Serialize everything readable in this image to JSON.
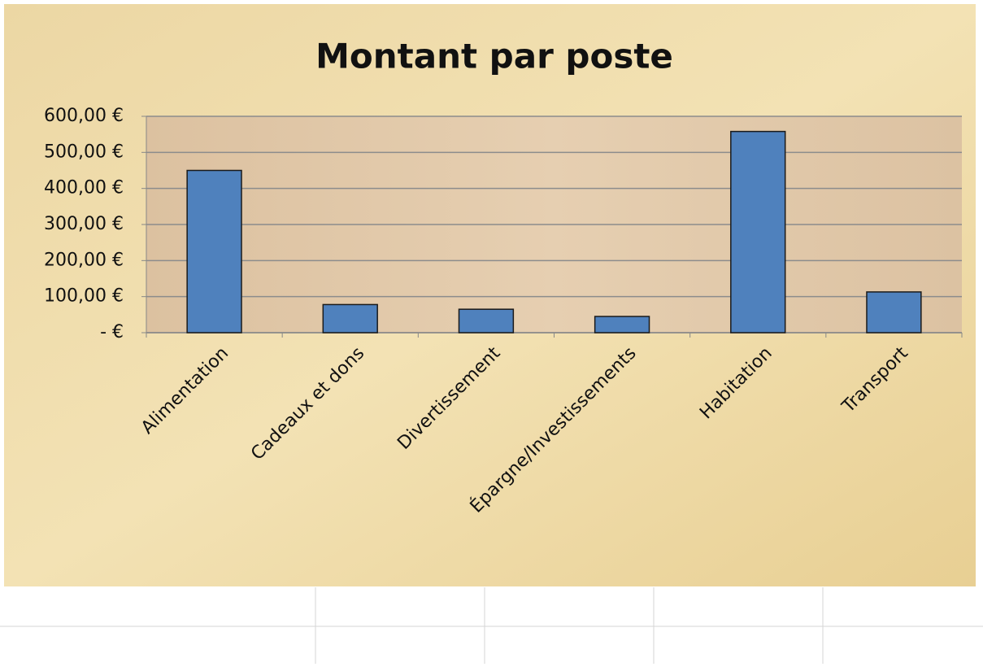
{
  "chart_data": {
    "type": "bar",
    "title": "Montant par poste",
    "categories": [
      "Alimentation",
      "Cadeaux et dons",
      "Divertissement",
      "Épargne/Investissements",
      "Habitation",
      "Transport"
    ],
    "values": [
      450,
      78,
      65,
      45,
      558,
      113
    ],
    "color": "#4f81bd",
    "ylim": [
      0,
      600
    ],
    "yticks": [
      {
        "value": 0,
        "label": "-   €"
      },
      {
        "value": 100,
        "label": "100,00 €"
      },
      {
        "value": 200,
        "label": "200,00 €"
      },
      {
        "value": 300,
        "label": "300,00 €"
      },
      {
        "value": 400,
        "label": "400,00 €"
      },
      {
        "value": 500,
        "label": "500,00 €"
      },
      {
        "value": 600,
        "label": "600,00 €"
      }
    ],
    "grid": true
  }
}
